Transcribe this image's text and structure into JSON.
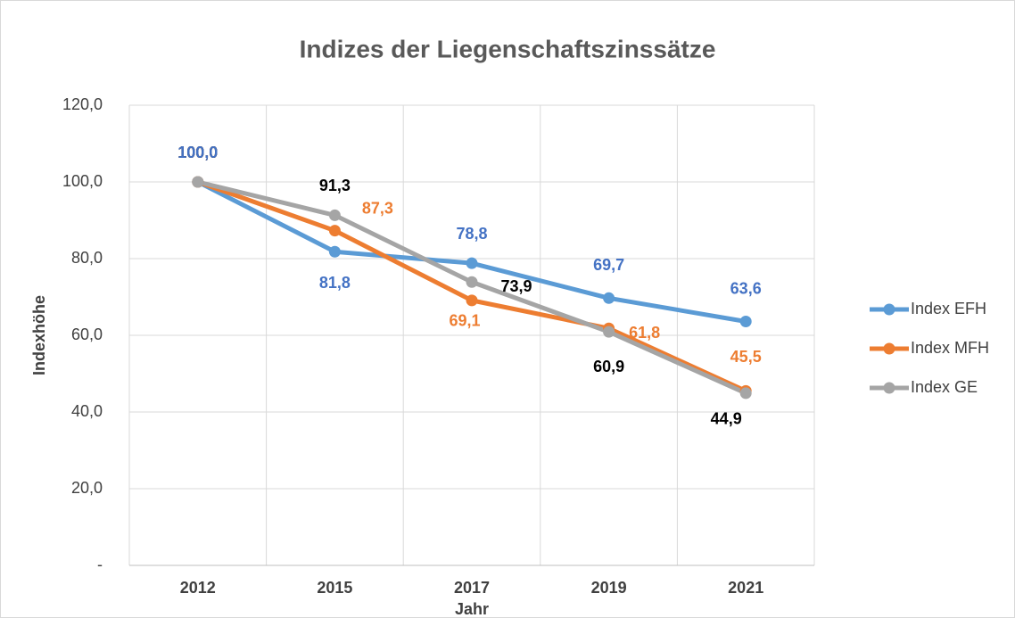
{
  "chart_data": {
    "type": "line",
    "title": "Indizes der Liegenschaftszinssätze",
    "x_label": "Jahr",
    "y_label": "Indexhöhe",
    "categories": [
      "2012",
      "2015",
      "2017",
      "2019",
      "2021"
    ],
    "series": [
      {
        "name": "Index EFH",
        "color": "#5b9bd5",
        "label_color": "#4472c4",
        "values": [
          100,
          81.8,
          78.8,
          69.7,
          63.6
        ],
        "value_labels": [
          "100,0",
          "81,8",
          "78,8",
          "69,7",
          "63,6"
        ]
      },
      {
        "name": "Index MFH",
        "color": "#ed7d31",
        "label_color": "#ed7d31",
        "values": [
          100,
          87.3,
          69.1,
          61.8,
          45.5
        ],
        "value_labels": [
          "100,0",
          "87,3",
          "69,1",
          "61,8",
          "45,5"
        ]
      },
      {
        "name": "Index GE",
        "color": "#a5a5a5",
        "label_color": "#000000",
        "values": [
          100,
          91.3,
          73.9,
          60.9,
          44.9
        ],
        "value_labels": [
          "100,0",
          "91,3",
          "73,9",
          "60,9",
          "44,9"
        ]
      }
    ],
    "ylim": [
      0,
      120
    ],
    "yticks": [
      {
        "value": 0,
        "label": "-"
      },
      {
        "value": 20,
        "label": "20,0"
      },
      {
        "value": 40,
        "label": "40,0"
      },
      {
        "value": 60,
        "label": "60,0"
      },
      {
        "value": 80,
        "label": "80,0"
      },
      {
        "value": 100,
        "label": "100,0"
      },
      {
        "value": 120,
        "label": "120,0"
      }
    ],
    "grid": true,
    "legend": "right"
  }
}
